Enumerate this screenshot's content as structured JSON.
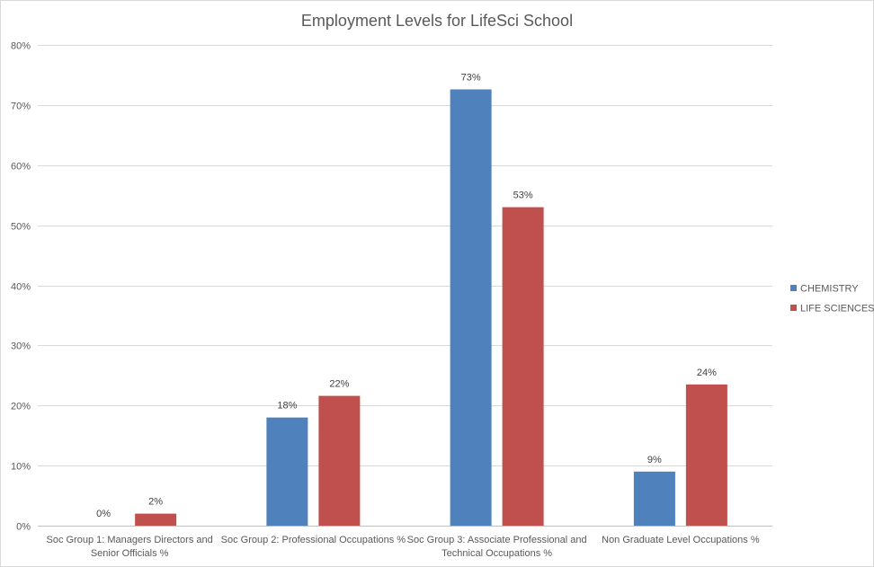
{
  "chart_data": {
    "type": "bar",
    "title": "Employment Levels for LifeSci School",
    "xlabel": "",
    "ylabel": "",
    "ylim": [
      0,
      80
    ],
    "yticks": [
      "0%",
      "10%",
      "20%",
      "30%",
      "40%",
      "50%",
      "60%",
      "70%",
      "80%"
    ],
    "grid": true,
    "legend_position": "right",
    "categories": [
      [
        "Soc Group 1: Managers Directors and",
        "Senior Officials %"
      ],
      [
        "Soc Group 2: Professional Occupations %"
      ],
      [
        "Soc Group 3: Associate Professional and",
        "Technical Occupations %"
      ],
      [
        "Non Graduate Level Occupations %"
      ]
    ],
    "series": [
      {
        "name": "CHEMISTRY",
        "color": "#4f81bd",
        "values": [
          0,
          18,
          72.6,
          9
        ],
        "labels": [
          "0%",
          "18%",
          "73%",
          "9%"
        ]
      },
      {
        "name": "LIFE SCIENCES",
        "color": "#c0504d",
        "values": [
          2,
          21.6,
          53,
          23.5
        ],
        "labels": [
          "2%",
          "22%",
          "53%",
          "24%"
        ]
      }
    ]
  }
}
